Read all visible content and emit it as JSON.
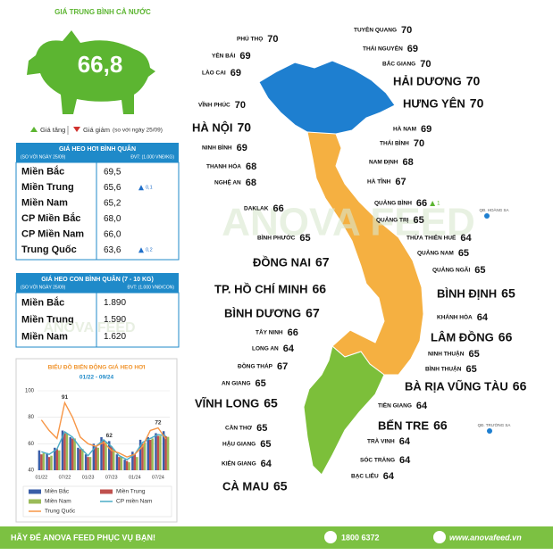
{
  "header": {
    "title": "GIÁ TRUNG BÌNH CẢ NƯỚC",
    "national_avg": "66,8"
  },
  "legend": {
    "increase": "Giá tăng",
    "decrease": "Giá giảm",
    "note": "(so với ngày 25/09)"
  },
  "table1": {
    "title": "GIÁ HEO HƠI BÌNH QUÂN",
    "compare": "(SO VỚI NGÀY 25/09)",
    "unit": "ĐVT: (1.000 VNĐ/KG)",
    "rows": [
      {
        "region": "Miền Bắc",
        "price": "69,5"
      },
      {
        "region": "Miền Trung",
        "price": "65,6",
        "change": "0,1"
      },
      {
        "region": "Miền Nam",
        "price": "65,2"
      },
      {
        "region": "CP Miền Bắc",
        "price": "68,0"
      },
      {
        "region": "CP Miền Nam",
        "price": "66,0"
      },
      {
        "region": "Trung Quốc",
        "price": "63,6",
        "change": "0,2"
      }
    ]
  },
  "table2": {
    "title": "GIÁ HEO CON BÌNH QUÂN (7 - 10 KG)",
    "compare": "(SO VỚI NGÀY 25/09)",
    "unit": "ĐVT: (1.000 VNĐ/CON)",
    "rows": [
      {
        "region": "Miền Bắc",
        "price": "1.890"
      },
      {
        "region": "Miền Trung",
        "price": "1.590"
      },
      {
        "region": "Miền Nam",
        "price": "1.620"
      }
    ]
  },
  "chart": {
    "type": "bar",
    "title": "BIỂU ĐỒ BIẾN ĐỘNG GIÁ HEO HƠI",
    "subtitle": "01/22 - 09/24",
    "categories": [
      "01/22",
      null,
      null,
      "07/22",
      null,
      null,
      "01/23",
      null,
      null,
      "07/23",
      null,
      null,
      "01/24",
      null,
      null,
      "07/24",
      null
    ],
    "ylim": [
      40,
      100
    ],
    "yticks": [
      40,
      60,
      80,
      100
    ],
    "grid": true,
    "annotations": [
      91,
      62,
      72
    ],
    "series": [
      {
        "name": "Miền Bắc",
        "kind": "bar",
        "color": "#3a5ea8",
        "values": [
          55,
          53,
          57,
          70,
          65,
          57,
          52,
          60,
          65,
          62,
          52,
          48,
          54,
          63,
          65,
          68,
          69.5
        ]
      },
      {
        "name": "Miền Trung",
        "kind": "bar",
        "color": "#c0504d",
        "values": [
          52,
          50,
          56,
          68,
          64,
          56,
          50,
          58,
          63,
          58,
          50,
          47,
          52,
          60,
          63,
          66,
          65.6
        ]
      },
      {
        "name": "Miền Nam",
        "kind": "bar",
        "color": "#9bbb59",
        "values": [
          53,
          51,
          55,
          68,
          64,
          56,
          50,
          57,
          61,
          56,
          50,
          46,
          50,
          61,
          64,
          66,
          65.2
        ]
      },
      {
        "name": "CP miền Nam",
        "kind": "line",
        "color": "#4bacc6",
        "values": [
          54,
          52,
          56,
          69,
          65,
          57,
          51,
          58,
          63,
          58,
          51,
          48,
          52,
          61,
          64,
          67,
          66
        ]
      },
      {
        "name": "Trung Quốc",
        "kind": "line",
        "color": "#f79646",
        "values": [
          78,
          70,
          64,
          91,
          80,
          65,
          60,
          58,
          61,
          55,
          53,
          50,
          52,
          58,
          70,
          72,
          63.6
        ]
      }
    ]
  },
  "map": {
    "watermark": "ANOVA FEED",
    "islands": [
      "QĐ. HOÀNG SA",
      "QĐ. TRƯỜNG SA"
    ],
    "provinces": [
      {
        "name": "PHÚ THỌ",
        "price": 70
      },
      {
        "name": "YÊN BÁI",
        "price": 69
      },
      {
        "name": "LÀO CAI",
        "price": 69
      },
      {
        "name": "VĨNH PHÚC",
        "price": 70
      },
      {
        "name": "HÀ NỘI",
        "price": 70
      },
      {
        "name": "NINH BÌNH",
        "price": 69
      },
      {
        "name": "THANH HÓA",
        "price": 68
      },
      {
        "name": "NGHỆ AN",
        "price": 68
      },
      {
        "name": "DAKLAK",
        "price": 66
      },
      {
        "name": "BÌNH PHƯỚC",
        "price": 65
      },
      {
        "name": "ĐỒNG NAI",
        "price": 67
      },
      {
        "name": "TP. HỒ CHÍ MINH",
        "price": 66
      },
      {
        "name": "BÌNH DƯƠNG",
        "price": 67
      },
      {
        "name": "TÂY NINH",
        "price": 66
      },
      {
        "name": "LONG AN",
        "price": 64
      },
      {
        "name": "ĐỒNG THÁP",
        "price": 67
      },
      {
        "name": "AN GIANG",
        "price": 65
      },
      {
        "name": "VĨNH LONG",
        "price": 65
      },
      {
        "name": "CẦN THƠ",
        "price": 65
      },
      {
        "name": "HẬU GIANG",
        "price": 65
      },
      {
        "name": "KIÊN GIANG",
        "price": 64
      },
      {
        "name": "CÀ MAU",
        "price": 65
      },
      {
        "name": "TUYÊN QUANG",
        "price": 70
      },
      {
        "name": "THÁI NGUYÊN",
        "price": 69
      },
      {
        "name": "BẮC GIANG",
        "price": 70
      },
      {
        "name": "HẢI DƯƠNG",
        "price": 70
      },
      {
        "name": "HƯNG YÊN",
        "price": 70
      },
      {
        "name": "HÀ NAM",
        "price": 69
      },
      {
        "name": "THÁI BÌNH",
        "price": 70
      },
      {
        "name": "NAM ĐỊNH",
        "price": 68
      },
      {
        "name": "HÀ TĨNH",
        "price": 67
      },
      {
        "name": "QUẢNG BÌNH",
        "price": 66,
        "change": 1
      },
      {
        "name": "QUẢNG TRỊ",
        "price": 65
      },
      {
        "name": "THỪA THIÊN HUẾ",
        "price": 64
      },
      {
        "name": "QUẢNG NAM",
        "price": 65
      },
      {
        "name": "QUẢNG NGÃI",
        "price": 65
      },
      {
        "name": "BÌNH ĐỊNH",
        "price": 65
      },
      {
        "name": "KHÁNH HÒA",
        "price": 64
      },
      {
        "name": "LÂM ĐỒNG",
        "price": 66
      },
      {
        "name": "NINH THUẬN",
        "price": 65
      },
      {
        "name": "BÌNH THUẬN",
        "price": 65
      },
      {
        "name": "BÀ RỊA VŨNG TÀU",
        "price": 66
      },
      {
        "name": "TIỀN GIANG",
        "price": 64
      },
      {
        "name": "BẾN TRE",
        "price": 66
      },
      {
        "name": "TRÀ VINH",
        "price": 64
      },
      {
        "name": "SÓC TRĂNG",
        "price": 64
      },
      {
        "name": "BẠC LIÊU",
        "price": 64
      }
    ]
  },
  "footer": {
    "slogan": "HÃY ĐỂ ANOVA FEED PHỤC VỤ BẠN!",
    "phone": "1800 6372",
    "website": "www.anovafeed.vn"
  }
}
